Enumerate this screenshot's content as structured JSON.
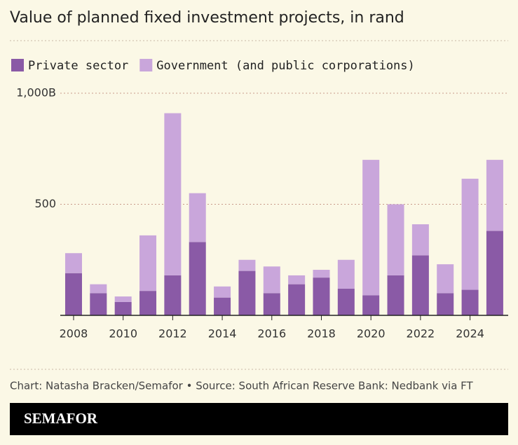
{
  "chart_data": {
    "type": "bar",
    "stacked": true,
    "title": "Value of planned fixed investment projects, in rand",
    "x": [
      2008,
      2009,
      2010,
      2011,
      2012,
      2013,
      2014,
      2015,
      2016,
      2017,
      2018,
      2019,
      2020,
      2021,
      2022,
      2023,
      2024,
      2025
    ],
    "series": [
      {
        "name": "Private sector",
        "color": "#8a5aa6",
        "values": [
          190,
          100,
          60,
          110,
          180,
          330,
          80,
          200,
          100,
          140,
          170,
          120,
          90,
          180,
          270,
          100,
          115,
          380
        ]
      },
      {
        "name": "Government (and public corporations)",
        "color": "#c9a6db",
        "values": [
          90,
          40,
          25,
          250,
          730,
          220,
          50,
          50,
          120,
          40,
          35,
          130,
          610,
          320,
          140,
          130,
          500,
          320
        ]
      }
    ],
    "xlim": [
      2007.5,
      2025.5
    ],
    "xticks": [
      2008,
      2010,
      2012,
      2014,
      2016,
      2018,
      2020,
      2022,
      2024
    ],
    "ylim": [
      0,
      1000
    ],
    "yticks": [
      500,
      {
        "value": 1000,
        "label": "1,000B"
      }
    ],
    "grid": true
  },
  "footer": {
    "credit": "Chart: Natasha Bracken/Semafor • Source: South African Reserve Bank: Nedbank via FT",
    "brand": "SEMAFOR"
  }
}
